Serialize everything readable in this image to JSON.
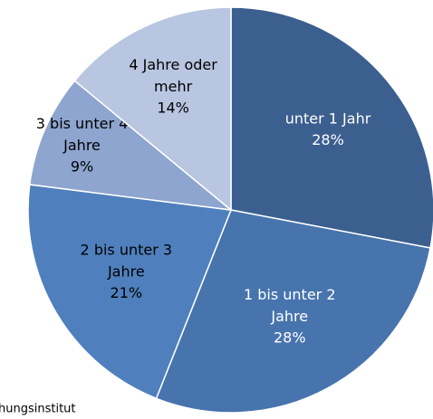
{
  "chart_data": {
    "type": "pie",
    "categories": [
      "unter 1 Jahr",
      "1 bis unter 2 Jahre",
      "2 bis unter 3 Jahre",
      "3 bis unter 4 Jahre",
      "4 Jahre oder mehr"
    ],
    "values": [
      28,
      28,
      21,
      9,
      14
    ],
    "value_labels": [
      "28%",
      "28%",
      "21%",
      "9%",
      "14%"
    ],
    "colors": [
      "#3b5f8f",
      "#4774ad",
      "#4f80bd",
      "#8da5cf",
      "#b9c6e1"
    ],
    "source": "hungsinstitut"
  }
}
